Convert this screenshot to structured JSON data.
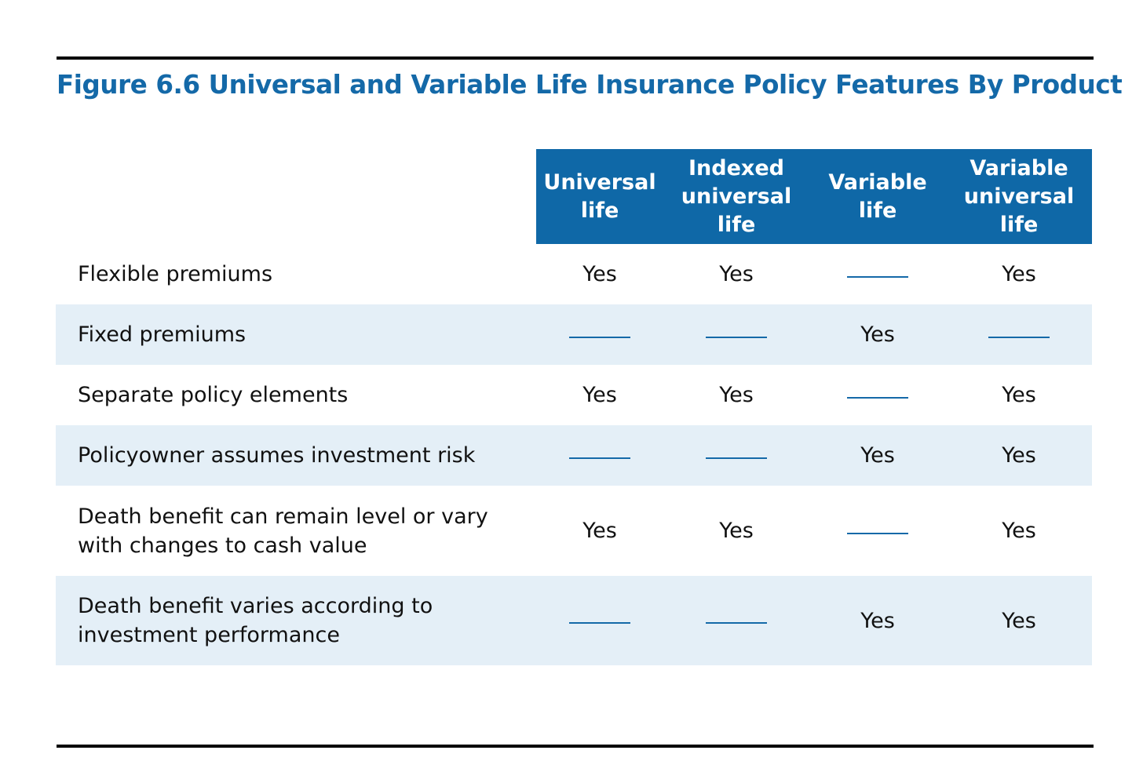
{
  "title": "Figure 6.6 Universal and Variable Life Insurance Policy Features By Product",
  "columns": [
    {
      "lines": [
        "Universal",
        "life"
      ]
    },
    {
      "lines": [
        "Indexed",
        "universal",
        "life"
      ]
    },
    {
      "lines": [
        "Variable",
        "life"
      ]
    },
    {
      "lines": [
        "Variable",
        "universal",
        "life"
      ]
    }
  ],
  "no_mark_symbol": "———",
  "rows": [
    {
      "label": "Flexible premiums",
      "values": [
        "Yes",
        "Yes",
        "",
        "Yes"
      ]
    },
    {
      "label": "Fixed premiums",
      "values": [
        "",
        "",
        "Yes",
        ""
      ]
    },
    {
      "label": "Separate policy elements",
      "values": [
        "Yes",
        "Yes",
        "",
        "Yes"
      ]
    },
    {
      "label": "Policyowner assumes investment risk",
      "values": [
        "",
        "",
        "Yes",
        "Yes"
      ]
    },
    {
      "label": "Death benefit can remain level or vary with changes to cash value",
      "values": [
        "Yes",
        "Yes",
        "",
        "Yes"
      ]
    },
    {
      "label": "Death benefit varies according to investment performance",
      "values": [
        "",
        "",
        "Yes",
        "Yes"
      ]
    }
  ],
  "colors": {
    "title": "#1469a8",
    "header_bg": "#0f68a7",
    "header_text": "#ffffff",
    "row_shade": "#e4eff7",
    "dash": "#1469a8",
    "rule": "#000000"
  }
}
